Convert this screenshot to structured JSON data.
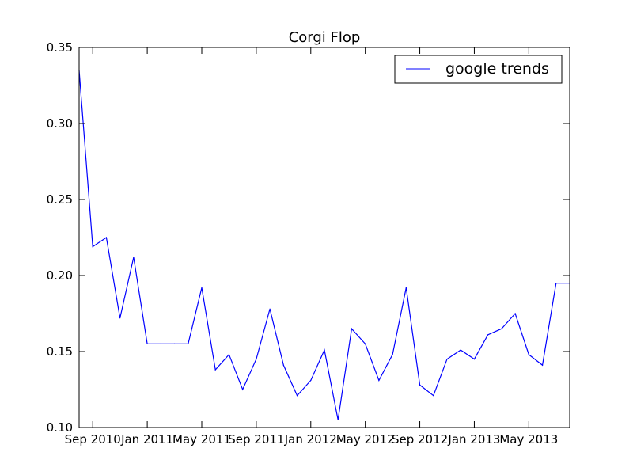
{
  "chart_data": {
    "type": "line",
    "title": "Corgi Flop",
    "xlabel": "",
    "ylabel": "",
    "ylim": [
      0.1,
      0.35
    ],
    "yticks": [
      "0.10",
      "0.15",
      "0.20",
      "0.25",
      "0.30",
      "0.35"
    ],
    "xtick_labels": [
      "Sep 2010",
      "Jan 2011",
      "May 2011",
      "Sep 2011",
      "Jan 2012",
      "May 2012",
      "Sep 2012",
      "Jan 2013",
      "May 2013"
    ],
    "x": [
      "2010-08",
      "2010-09",
      "2010-10",
      "2010-11",
      "2010-12",
      "2011-01",
      "2011-02",
      "2011-03",
      "2011-04",
      "2011-05",
      "2011-06",
      "2011-07",
      "2011-08",
      "2011-09",
      "2011-10",
      "2011-11",
      "2011-12",
      "2012-01",
      "2012-02",
      "2012-03",
      "2012-04",
      "2012-05",
      "2012-06",
      "2012-07",
      "2012-08",
      "2012-09",
      "2012-10",
      "2012-11",
      "2012-12",
      "2013-01",
      "2013-02",
      "2013-03",
      "2013-04",
      "2013-05",
      "2013-06",
      "2013-07",
      "2013-08"
    ],
    "series": [
      {
        "name": "google trends",
        "color": "#0000ff",
        "values": [
          0.335,
          0.219,
          0.225,
          0.172,
          0.212,
          0.155,
          0.155,
          0.155,
          0.155,
          0.192,
          0.138,
          0.148,
          0.125,
          0.145,
          0.178,
          0.141,
          0.121,
          0.131,
          0.151,
          0.105,
          0.165,
          0.155,
          0.131,
          0.148,
          0.192,
          0.128,
          0.121,
          0.145,
          0.151,
          0.145,
          0.161,
          0.165,
          0.175,
          0.148,
          0.141,
          0.195,
          0.195
        ]
      }
    ],
    "grid": false,
    "legend": "top-right"
  }
}
